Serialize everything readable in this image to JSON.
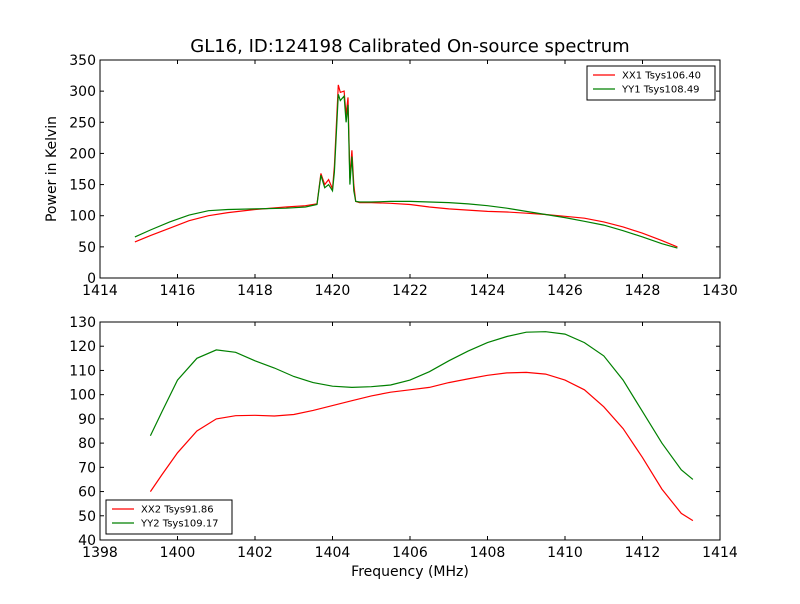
{
  "figure": {
    "title": "GL16, ID:124198 Calibrated On-source spectrum",
    "background": "#ffffff"
  },
  "chart_data": [
    {
      "type": "line",
      "title": "GL16, ID:124198 Calibrated On-source spectrum",
      "xlabel": "",
      "ylabel": "Power in Kelvin",
      "xlim": [
        1414,
        1430
      ],
      "ylim": [
        0,
        350
      ],
      "xticks": [
        1414,
        1416,
        1418,
        1420,
        1422,
        1424,
        1426,
        1428,
        1430
      ],
      "yticks": [
        0,
        50,
        100,
        150,
        200,
        250,
        300,
        350
      ],
      "grid": false,
      "legend": "top-right",
      "series": [
        {
          "name": "XX1 Tsys106.40",
          "color": "#ff0000",
          "x": [
            1414.9,
            1415.3,
            1415.8,
            1416.3,
            1416.8,
            1417.3,
            1418.0,
            1418.8,
            1419.3,
            1419.6,
            1419.7,
            1419.8,
            1419.9,
            1420.0,
            1420.05,
            1420.15,
            1420.2,
            1420.3,
            1420.35,
            1420.4,
            1420.45,
            1420.5,
            1420.55,
            1420.6,
            1420.7,
            1421.0,
            1421.5,
            1422.0,
            1422.5,
            1423.0,
            1423.5,
            1424.0,
            1424.5,
            1425.0,
            1425.5,
            1426.0,
            1426.5,
            1427.0,
            1427.5,
            1428.0,
            1428.5,
            1428.9
          ],
          "y": [
            58,
            68,
            80,
            92,
            100,
            105,
            110,
            114,
            116,
            119,
            168,
            150,
            158,
            143,
            180,
            310,
            298,
            300,
            262,
            290,
            160,
            205,
            150,
            123,
            121,
            121,
            120,
            118,
            114,
            111,
            109,
            107,
            106,
            104,
            102,
            99,
            96,
            90,
            82,
            72,
            60,
            50
          ]
        },
        {
          "name": "YY1 Tsys108.49",
          "color": "#008000",
          "x": [
            1414.9,
            1415.3,
            1415.8,
            1416.3,
            1416.8,
            1417.3,
            1418.0,
            1418.8,
            1419.3,
            1419.6,
            1419.7,
            1419.8,
            1419.9,
            1420.0,
            1420.05,
            1420.15,
            1420.2,
            1420.3,
            1420.35,
            1420.4,
            1420.45,
            1420.5,
            1420.55,
            1420.6,
            1420.7,
            1421.0,
            1421.5,
            1422.0,
            1422.5,
            1423.0,
            1423.5,
            1424.0,
            1424.5,
            1425.0,
            1425.5,
            1426.0,
            1426.5,
            1427.0,
            1427.5,
            1428.0,
            1428.5,
            1428.9
          ],
          "y": [
            66,
            77,
            90,
            101,
            108,
            110,
            111,
            112,
            114,
            118,
            165,
            145,
            150,
            140,
            170,
            295,
            285,
            292,
            250,
            278,
            150,
            195,
            140,
            123,
            122,
            122,
            123,
            123,
            122,
            121,
            119,
            116,
            112,
            107,
            102,
            97,
            91,
            85,
            76,
            66,
            55,
            48
          ]
        }
      ]
    },
    {
      "type": "line",
      "title": "",
      "xlabel": "Frequency (MHz)",
      "ylabel": "",
      "xlim": [
        1398,
        1414
      ],
      "ylim": [
        40,
        130
      ],
      "xticks": [
        1398,
        1400,
        1402,
        1404,
        1406,
        1408,
        1410,
        1412,
        1414
      ],
      "yticks": [
        40,
        50,
        60,
        70,
        80,
        90,
        100,
        110,
        120,
        130
      ],
      "grid": false,
      "legend": "bottom-left",
      "series": [
        {
          "name": "XX2 Tsys91.86",
          "color": "#ff0000",
          "x": [
            1399.3,
            1399.6,
            1400.0,
            1400.5,
            1401.0,
            1401.5,
            1402.0,
            1402.5,
            1403.0,
            1403.5,
            1404.0,
            1404.5,
            1405.0,
            1405.5,
            1406.0,
            1406.5,
            1407.0,
            1407.5,
            1408.0,
            1408.5,
            1409.0,
            1409.5,
            1410.0,
            1410.5,
            1411.0,
            1411.5,
            1412.0,
            1412.5,
            1413.0,
            1413.3
          ],
          "y": [
            60,
            67,
            76,
            85,
            90,
            91.3,
            91.5,
            91.2,
            91.8,
            93.5,
            95.5,
            97.5,
            99.5,
            101,
            102,
            103,
            105,
            106.5,
            108,
            109,
            109.2,
            108.5,
            106,
            102,
            95,
            86,
            74,
            61,
            51,
            48
          ]
        },
        {
          "name": "YY2 Tsys109.17",
          "color": "#008000",
          "x": [
            1399.3,
            1399.6,
            1400.0,
            1400.5,
            1401.0,
            1401.5,
            1402.0,
            1402.5,
            1403.0,
            1403.5,
            1404.0,
            1404.5,
            1405.0,
            1405.5,
            1406.0,
            1406.5,
            1407.0,
            1407.5,
            1408.0,
            1408.5,
            1409.0,
            1409.5,
            1410.0,
            1410.5,
            1411.0,
            1411.5,
            1412.0,
            1412.5,
            1413.0,
            1413.3
          ],
          "y": [
            83,
            93,
            106,
            115,
            118.5,
            117.5,
            114,
            111,
            107.5,
            105,
            103.5,
            103,
            103.3,
            104,
            106,
            109.5,
            114,
            118,
            121.5,
            124,
            125.8,
            126,
            125,
            121.5,
            116,
            106,
            93,
            80,
            69,
            65
          ]
        }
      ]
    }
  ]
}
